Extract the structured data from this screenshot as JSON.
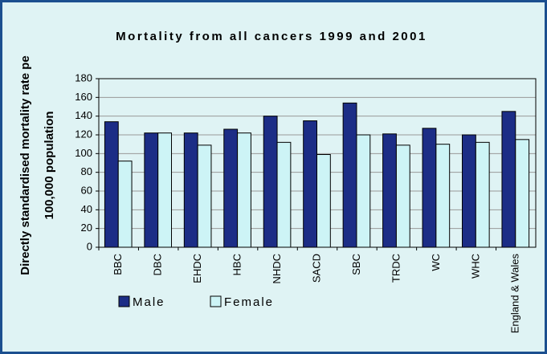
{
  "chart_data": {
    "type": "bar",
    "title": "Mortality from all cancers 1999 and 2001",
    "y_label": [
      "Directly standardised mortality rate pe",
      "100,000 population"
    ],
    "categories": [
      "BBC",
      "DBC",
      "EHDC",
      "HBC",
      "NHDC",
      "SACD",
      "SBC",
      "TRDC",
      "WC",
      "WHC",
      "England & Wales"
    ],
    "series": [
      {
        "name": "Male",
        "color": "#1c2d86",
        "values": [
          134,
          122,
          122,
          126,
          140,
          135,
          154,
          121,
          127,
          120,
          145
        ]
      },
      {
        "name": "Female",
        "color": "#cdf4f6",
        "values": [
          92,
          122,
          109,
          122,
          112,
          99,
          120,
          109,
          110,
          112,
          115
        ]
      }
    ],
    "ylim": [
      0,
      180
    ],
    "yticks": [
      0,
      20,
      40,
      60,
      80,
      100,
      120,
      140,
      160,
      180
    ],
    "grid": true
  }
}
